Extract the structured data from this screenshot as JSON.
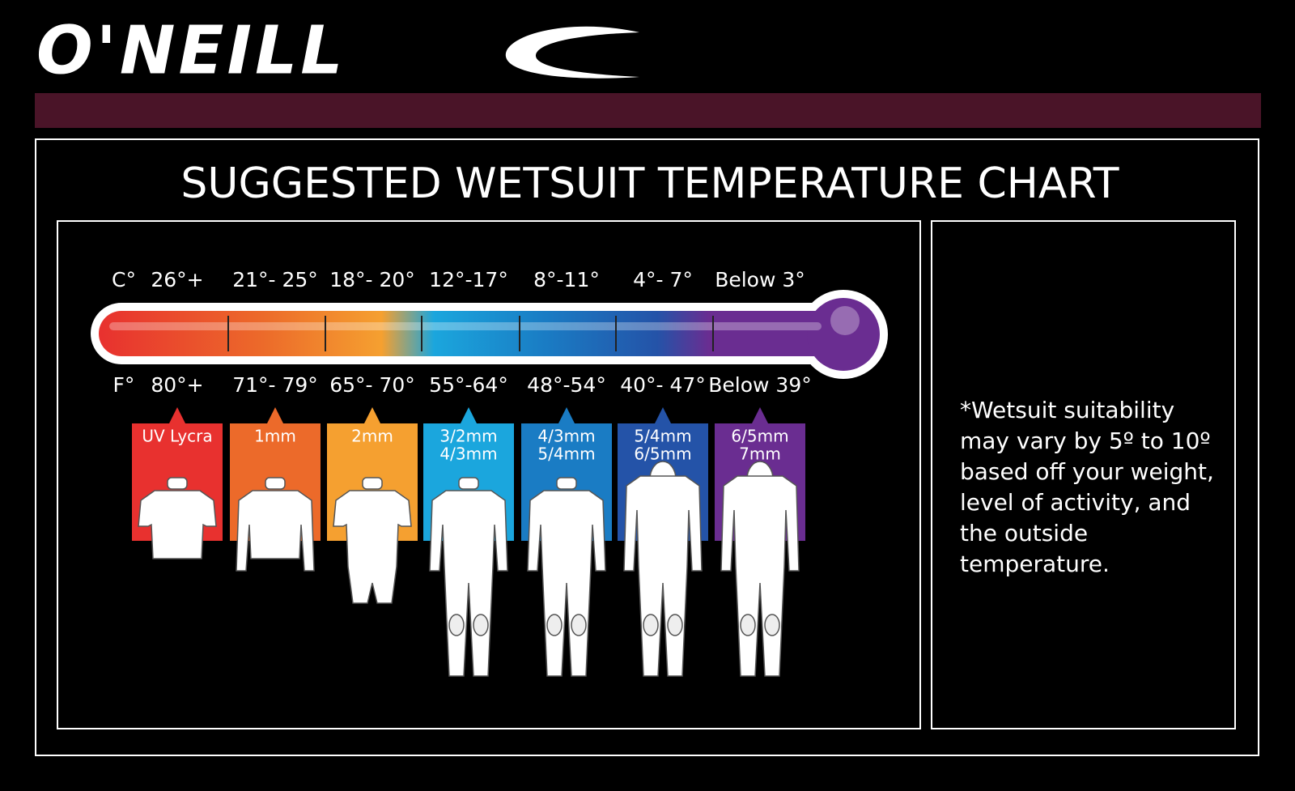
{
  "brand": "O'NEILL",
  "title": "SUGGESTED WETSUIT TEMPERATURE CHART",
  "celsius_unit": "C°",
  "fahrenheit_unit": "F°",
  "columns": [
    {
      "celsius": "26°+",
      "fahrenheit": "80°+",
      "suit": [
        "UV Lycra"
      ],
      "color": "#e8312f"
    },
    {
      "celsius": "21°- 25°",
      "fahrenheit": "71°- 79°",
      "suit": [
        "1mm"
      ],
      "color": "#ec6a2a"
    },
    {
      "celsius": "18°- 20°",
      "fahrenheit": "65°- 70°",
      "suit": [
        "2mm"
      ],
      "color": "#f5a030"
    },
    {
      "celsius": "12°-17°",
      "fahrenheit": "55°-64°",
      "suit": [
        "3/2mm",
        "4/3mm"
      ],
      "color": "#1ba6dd"
    },
    {
      "celsius": "8°-11°",
      "fahrenheit": "48°-54°",
      "suit": [
        "4/3mm",
        "5/4mm"
      ],
      "color": "#1a7cc4"
    },
    {
      "celsius": "4°- 7°",
      "fahrenheit": "40°- 47°",
      "suit": [
        "5/4mm",
        "6/5mm"
      ],
      "color": "#2453a8"
    },
    {
      "celsius": "Below 3°",
      "fahrenheit": "Below 39°",
      "suit": [
        "6/5mm",
        "7mm"
      ],
      "color": "#6a2d91"
    }
  ],
  "note": "*Wetsuit suitability may vary by 5º to 10º based off your weight, level of activity, and the outside temperature."
}
